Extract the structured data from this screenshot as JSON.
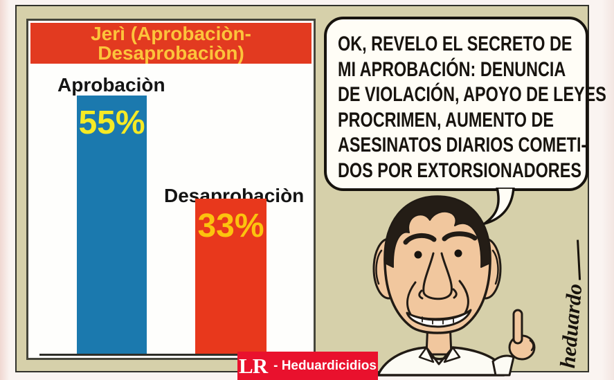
{
  "chart_data": {
    "type": "bar",
    "title": "Jerì (Aprobaciòn-Desaprobaciòn)",
    "title_lines": [
      "Jerì (Aprobaciòn-",
      "Desaprobaciòn)"
    ],
    "categories": [
      "Aprobaciòn",
      "Desaprobaciòn"
    ],
    "values": [
      55,
      33
    ],
    "value_labels": [
      "55%",
      "33%"
    ],
    "series_colors": [
      "#1b79ae",
      "#e8381c"
    ],
    "value_label_colors": [
      "#f5ea25",
      "#fcc30e"
    ],
    "title_bg": "#e23a20",
    "title_color": "#fcc43b",
    "ylim": [
      0,
      60
    ],
    "grid": false,
    "legend": false,
    "orientation": "vertical",
    "baseline_axis": true
  },
  "bubble": {
    "lines": [
      "OK, REVELO EL SECRETO DE",
      "MI APROBACIÓN: DENUNCIA",
      "DE VIOLACIÓN, APOYO DE LEYES",
      "PROCRIMEN, AUMENTO DE",
      "ASESINATOS DIARIOS COMETI-",
      "DOS POR EXTORSIONADORES"
    ]
  },
  "signature": {
    "text": "heduardo"
  },
  "logo": {
    "mark": "LR",
    "caption": "- Heduardicidios",
    "bg": "#e9112d"
  },
  "colors": {
    "panel_bg": "#d6d0aa",
    "panel_border": "#32322b",
    "bubble_bg": "#fffdf6",
    "skin": "#f1c79e",
    "hair": "#241d16",
    "ink": "#211b15",
    "page_bg": "#faf4f1"
  }
}
